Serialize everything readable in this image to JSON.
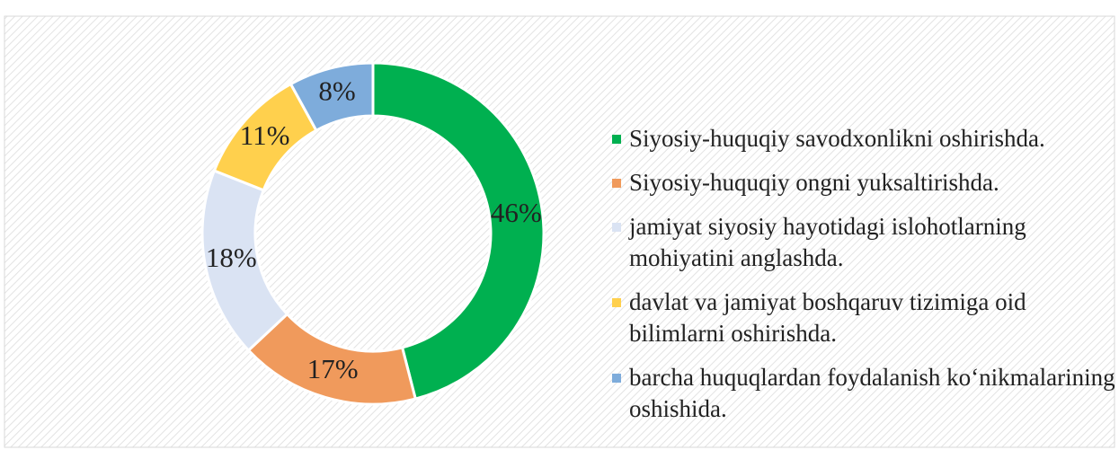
{
  "chart_data": {
    "type": "donut",
    "categories": [
      "Siyosiy-huquqiy savodxonlikni oshirishda.",
      "Siyosiy-huquqiy ongni yuksaltirishda.",
      "jamiyat siyosiy hayotidagi islohotlarning mohiyatini anglashda.",
      "davlat va jamiyat boshqaruv tizimiga oid bilimlarni oshirishda.",
      "barcha huquqlardan foydalanish ko‘nikmalarining oshishida."
    ],
    "values": [
      46,
      17,
      18,
      11,
      8
    ],
    "value_labels": [
      "46%",
      "17%",
      "18%",
      "11%",
      "8%"
    ],
    "colors": [
      "#00b050",
      "#f09a5c",
      "#dae3f3",
      "#ffd04d",
      "#7eacdb"
    ],
    "legend": "right"
  }
}
